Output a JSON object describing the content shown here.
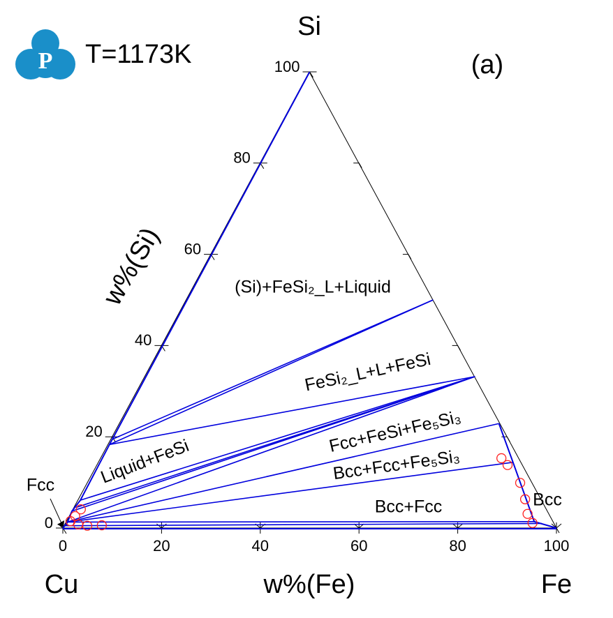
{
  "chart_data": {
    "type": "ternary",
    "title": "T=1173K",
    "panel_label": "(a)",
    "logo_text": "P",
    "corners": {
      "top": "Si",
      "left": "Cu",
      "right": "Fe"
    },
    "x_label": "w%(Fe)",
    "y_label": "w%(Si)",
    "xlim": [
      0,
      100
    ],
    "ylim": [
      0,
      100
    ],
    "xticks": [
      0,
      20,
      40,
      60,
      80,
      100
    ],
    "yticks": [
      0,
      20,
      40,
      60,
      80,
      100
    ],
    "line_color": "#0000dd",
    "point_color": "#ff2020",
    "regions": [
      "(Si)+FeSi₂_L+Liquid",
      "FeSi₂_L+L+FeSi",
      "Liquid+FeSi",
      "Fcc+FeSi+Fe₅Si₃",
      "Bcc+Fcc+Fe₅Si₃",
      "Bcc+Fcc",
      "Bcc",
      "Fcc"
    ],
    "tie_lines": [
      {
        "from": [
          0.3,
          18.3
        ],
        "to": [
          50,
          50
        ]
      },
      {
        "from": [
          0.2,
          19.4
        ],
        "to": [
          50,
          50
        ]
      },
      {
        "from": [
          0.3,
          18.3
        ],
        "to": [
          66.9,
          33.2
        ]
      },
      {
        "from": [
          0.5,
          6.1
        ],
        "to": [
          66.9,
          33.2
        ]
      },
      {
        "from": [
          0.4,
          4.5
        ],
        "to": [
          66.9,
          33.2
        ]
      },
      {
        "from": [
          0,
          3.7
        ],
        "to": [
          66.9,
          33.2
        ]
      },
      {
        "from": [
          0.3,
          1.3
        ],
        "to": [
          66.9,
          33.2
        ]
      },
      {
        "from": [
          0.3,
          1.3
        ],
        "to": [
          76.9,
          22.9
        ]
      },
      {
        "from": [
          0.3,
          1.3
        ],
        "to": [
          84.0,
          14.4
        ]
      },
      {
        "from": [
          0.3,
          1.3
        ],
        "to": [
          94.8,
          1.4
        ]
      },
      {
        "from": [
          0.3,
          0.5
        ],
        "to": [
          96.5,
          1.0
        ]
      }
    ],
    "liquid_boundary": {
      "x": [
        0,
        0.3,
        0.5,
        0,
        0.3,
        0
      ],
      "y": [
        100,
        18.3,
        6.1,
        3.7,
        1.3,
        0
      ]
    },
    "bcc_boundary": {
      "x": [
        76.9,
        84.0,
        94.8,
        100
      ],
      "y": [
        22.9,
        14.4,
        1.4,
        0
      ]
    },
    "points": {
      "x": [
        81.2,
        83.2,
        87.7,
        90.5,
        92.6,
        94.6,
        1.6,
        1.2,
        0.8,
        2.7,
        4.7,
        7.6
      ],
      "y": [
        15.3,
        13.8,
        9.9,
        6.3,
        3.1,
        1.1,
        4.1,
        2.6,
        1.5,
        0.8,
        0.5,
        0.6
      ]
    }
  }
}
